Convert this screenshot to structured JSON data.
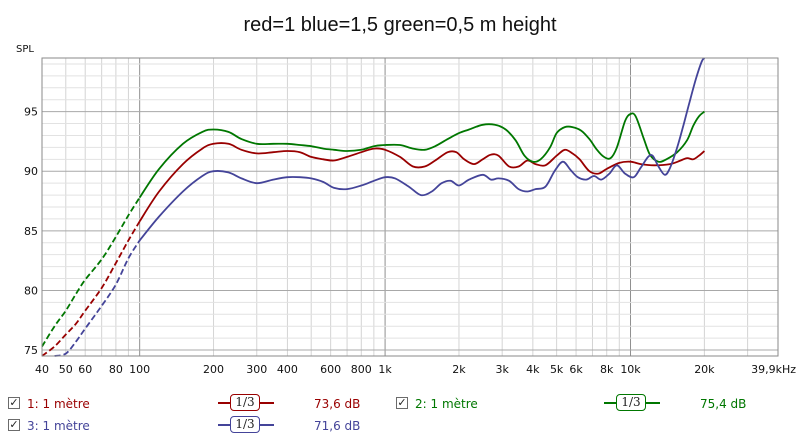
{
  "chart_data": {
    "type": "line",
    "title": "red=1 blue=1,5 green=0,5 m height",
    "ylabel": "SPL",
    "xlabel": "",
    "x_scale": "log",
    "xlim": [
      40,
      39900
    ],
    "ylim": [
      74.5,
      99.5
    ],
    "grid": true,
    "x_tick_labels": [
      {
        "x": 40,
        "label": "40"
      },
      {
        "x": 50,
        "label": "50"
      },
      {
        "x": 60,
        "label": "60"
      },
      {
        "x": 80,
        "label": "80"
      },
      {
        "x": 100,
        "label": "100"
      },
      {
        "x": 200,
        "label": "200"
      },
      {
        "x": 300,
        "label": "300"
      },
      {
        "x": 400,
        "label": "400"
      },
      {
        "x": 600,
        "label": "600"
      },
      {
        "x": 800,
        "label": "800"
      },
      {
        "x": 1000,
        "label": "1k"
      },
      {
        "x": 2000,
        "label": "2k"
      },
      {
        "x": 3000,
        "label": "3k"
      },
      {
        "x": 4000,
        "label": "4k"
      },
      {
        "x": 5000,
        "label": "5k"
      },
      {
        "x": 6000,
        "label": "6k"
      },
      {
        "x": 8000,
        "label": "8k"
      },
      {
        "x": 10000,
        "label": "10k"
      },
      {
        "x": 20000,
        "label": "20k"
      },
      {
        "x": 39900,
        "label": "39,9kHz"
      }
    ],
    "y_tick_labels": [
      {
        "y": 75,
        "label": "75"
      },
      {
        "y": 80,
        "label": "80"
      },
      {
        "y": 85,
        "label": "85"
      },
      {
        "y": 90,
        "label": "90"
      },
      {
        "y": 95,
        "label": "95"
      }
    ],
    "series": [
      {
        "name": "1: 1 mètre",
        "color": "#990000",
        "dashed_below": 100,
        "points": [
          [
            40,
            74.0
          ],
          [
            45,
            75.3
          ],
          [
            50,
            76.3
          ],
          [
            55,
            77.2
          ],
          [
            60,
            78.3
          ],
          [
            70,
            80.2
          ],
          [
            80,
            82.3
          ],
          [
            90,
            84.2
          ],
          [
            100,
            85.8
          ],
          [
            120,
            88.3
          ],
          [
            150,
            90.6
          ],
          [
            180,
            91.9
          ],
          [
            200,
            92.3
          ],
          [
            230,
            92.3
          ],
          [
            260,
            91.8
          ],
          [
            300,
            91.5
          ],
          [
            350,
            91.6
          ],
          [
            400,
            91.7
          ],
          [
            450,
            91.6
          ],
          [
            500,
            91.2
          ],
          [
            560,
            91.0
          ],
          [
            620,
            90.9
          ],
          [
            700,
            91.2
          ],
          [
            800,
            91.6
          ],
          [
            900,
            91.9
          ],
          [
            1000,
            91.8
          ],
          [
            1150,
            91.2
          ],
          [
            1300,
            90.4
          ],
          [
            1450,
            90.4
          ],
          [
            1600,
            90.9
          ],
          [
            1800,
            91.6
          ],
          [
            1950,
            91.6
          ],
          [
            2100,
            91.0
          ],
          [
            2300,
            90.6
          ],
          [
            2500,
            91.0
          ],
          [
            2700,
            91.4
          ],
          [
            2900,
            91.3
          ],
          [
            3200,
            90.4
          ],
          [
            3500,
            90.4
          ],
          [
            3800,
            90.9
          ],
          [
            4100,
            90.6
          ],
          [
            4500,
            90.5
          ],
          [
            5000,
            91.3
          ],
          [
            5400,
            91.8
          ],
          [
            5800,
            91.5
          ],
          [
            6200,
            91.0
          ],
          [
            6800,
            90.0
          ],
          [
            7400,
            89.8
          ],
          [
            8000,
            90.2
          ],
          [
            9000,
            90.7
          ],
          [
            10000,
            90.8
          ],
          [
            11000,
            90.6
          ],
          [
            12500,
            90.5
          ],
          [
            14500,
            90.6
          ],
          [
            16000,
            90.9
          ],
          [
            17000,
            91.1
          ],
          [
            18000,
            91.0
          ],
          [
            19000,
            91.3
          ],
          [
            20000,
            91.7
          ]
        ]
      },
      {
        "name": "2: 1 mètre",
        "color": "#007700",
        "dashed_below": 100,
        "points": [
          [
            40,
            75.3
          ],
          [
            45,
            77.0
          ],
          [
            50,
            78.3
          ],
          [
            55,
            79.7
          ],
          [
            60,
            80.9
          ],
          [
            70,
            82.6
          ],
          [
            80,
            84.5
          ],
          [
            90,
            86.3
          ],
          [
            100,
            87.8
          ],
          [
            120,
            90.2
          ],
          [
            150,
            92.3
          ],
          [
            180,
            93.3
          ],
          [
            200,
            93.5
          ],
          [
            230,
            93.3
          ],
          [
            260,
            92.7
          ],
          [
            300,
            92.3
          ],
          [
            350,
            92.3
          ],
          [
            400,
            92.3
          ],
          [
            450,
            92.2
          ],
          [
            500,
            92.1
          ],
          [
            560,
            91.9
          ],
          [
            620,
            91.8
          ],
          [
            700,
            91.7
          ],
          [
            800,
            91.8
          ],
          [
            900,
            92.1
          ],
          [
            1000,
            92.2
          ],
          [
            1150,
            92.2
          ],
          [
            1300,
            91.9
          ],
          [
            1450,
            91.8
          ],
          [
            1600,
            92.1
          ],
          [
            1800,
            92.7
          ],
          [
            2000,
            93.2
          ],
          [
            2200,
            93.5
          ],
          [
            2500,
            93.9
          ],
          [
            2800,
            93.9
          ],
          [
            3100,
            93.5
          ],
          [
            3400,
            92.6
          ],
          [
            3700,
            91.3
          ],
          [
            4000,
            90.8
          ],
          [
            4300,
            91.0
          ],
          [
            4700,
            92.0
          ],
          [
            5000,
            93.2
          ],
          [
            5400,
            93.7
          ],
          [
            5800,
            93.7
          ],
          [
            6300,
            93.4
          ],
          [
            6800,
            92.7
          ],
          [
            7300,
            91.8
          ],
          [
            7800,
            91.2
          ],
          [
            8300,
            91.1
          ],
          [
            8800,
            92.0
          ],
          [
            9500,
            94.2
          ],
          [
            10000,
            94.8
          ],
          [
            10500,
            94.6
          ],
          [
            11300,
            92.8
          ],
          [
            12000,
            91.4
          ],
          [
            13000,
            90.8
          ],
          [
            14000,
            91.0
          ],
          [
            15500,
            91.6
          ],
          [
            17000,
            92.6
          ],
          [
            18000,
            93.8
          ],
          [
            19000,
            94.6
          ],
          [
            20000,
            95.0
          ]
        ]
      },
      {
        "name": "3: 1 mètre",
        "color": "#444499",
        "dashed_below": 100,
        "points": [
          [
            45,
            74.0
          ],
          [
            50,
            74.7
          ],
          [
            55,
            75.7
          ],
          [
            60,
            76.8
          ],
          [
            70,
            78.7
          ],
          [
            80,
            80.5
          ],
          [
            90,
            82.7
          ],
          [
            100,
            84.2
          ],
          [
            120,
            86.2
          ],
          [
            150,
            88.3
          ],
          [
            180,
            89.6
          ],
          [
            200,
            90.0
          ],
          [
            230,
            89.9
          ],
          [
            260,
            89.4
          ],
          [
            300,
            89.0
          ],
          [
            350,
            89.3
          ],
          [
            400,
            89.5
          ],
          [
            450,
            89.5
          ],
          [
            500,
            89.4
          ],
          [
            560,
            89.1
          ],
          [
            620,
            88.6
          ],
          [
            700,
            88.5
          ],
          [
            800,
            88.8
          ],
          [
            900,
            89.2
          ],
          [
            1000,
            89.5
          ],
          [
            1100,
            89.4
          ],
          [
            1250,
            88.7
          ],
          [
            1400,
            88.0
          ],
          [
            1550,
            88.3
          ],
          [
            1700,
            89.0
          ],
          [
            1850,
            89.2
          ],
          [
            2000,
            88.8
          ],
          [
            2200,
            89.3
          ],
          [
            2500,
            89.7
          ],
          [
            2700,
            89.3
          ],
          [
            2900,
            89.4
          ],
          [
            3200,
            89.2
          ],
          [
            3500,
            88.5
          ],
          [
            3800,
            88.3
          ],
          [
            4100,
            88.5
          ],
          [
            4500,
            88.7
          ],
          [
            4900,
            90.0
          ],
          [
            5300,
            90.8
          ],
          [
            5700,
            90.1
          ],
          [
            6100,
            89.5
          ],
          [
            6600,
            89.3
          ],
          [
            7100,
            89.6
          ],
          [
            7600,
            89.3
          ],
          [
            8200,
            89.8
          ],
          [
            8800,
            90.5
          ],
          [
            9500,
            89.8
          ],
          [
            10300,
            89.5
          ],
          [
            11000,
            90.3
          ],
          [
            11800,
            91.2
          ],
          [
            12300,
            91.3
          ],
          [
            13000,
            90.4
          ],
          [
            13800,
            89.7
          ],
          [
            14500,
            90.3
          ],
          [
            15500,
            92.0
          ],
          [
            16500,
            94.0
          ],
          [
            17500,
            96.0
          ],
          [
            18500,
            97.8
          ],
          [
            19500,
            99.2
          ],
          [
            20000,
            99.6
          ]
        ]
      }
    ]
  },
  "legend": [
    {
      "name": "1: 1 mètre",
      "smoothing": "1/3",
      "level": "73,6 dB",
      "color": "#990000"
    },
    {
      "name": "2: 1 mètre",
      "smoothing": "1/3",
      "level": "75,4 dB",
      "color": "#007700"
    },
    {
      "name": "3: 1 mètre",
      "smoothing": "1/3",
      "level": "71,6 dB",
      "color": "#444499"
    }
  ]
}
